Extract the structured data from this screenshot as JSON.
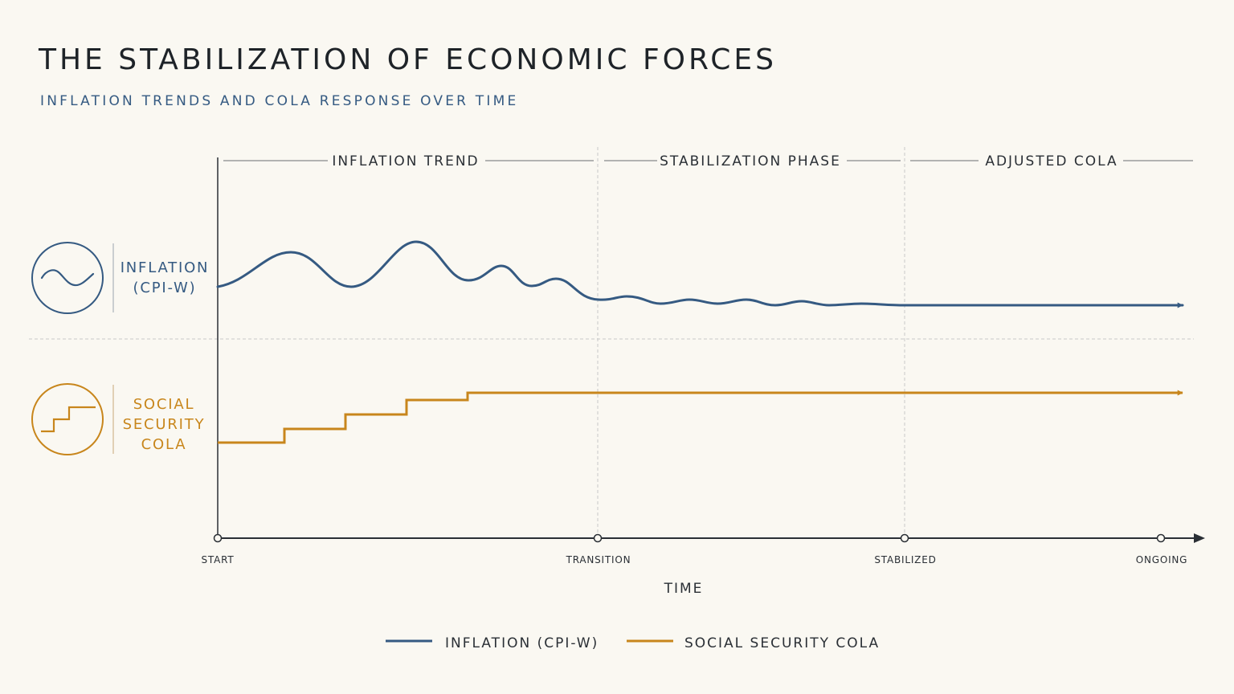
{
  "title": "THE STABILIZATION OF ECONOMIC FORCES",
  "subtitle": "INFLATION TRENDS AND COLA RESPONSE OVER TIME",
  "colors": {
    "background": "#FAF8F2",
    "inflation": "#355A82",
    "cola": "#C8861C",
    "axis": "#2A2F35",
    "guides": "#BDBDBD"
  },
  "phases": [
    {
      "label": "INFLATION TREND"
    },
    {
      "label": "STABILIZATION PHASE"
    },
    {
      "label": "ADJUSTED COLA"
    }
  ],
  "rows": [
    {
      "label_lines": [
        "INFLATION",
        "(CPI-W)"
      ],
      "icon": "wave-icon"
    },
    {
      "label_lines": [
        "SOCIAL",
        "SECURITY",
        "COLA"
      ],
      "icon": "stairs-icon"
    }
  ],
  "x_axis": {
    "title": "TIME",
    "milestones": [
      "START",
      "TRANSITION",
      "STABILIZED",
      "ONGOING"
    ]
  },
  "legend": [
    {
      "label": "INFLATION (CPI-W)",
      "series": "inflation"
    },
    {
      "label": "SOCIAL SECURITY COLA",
      "series": "cola"
    }
  ]
}
